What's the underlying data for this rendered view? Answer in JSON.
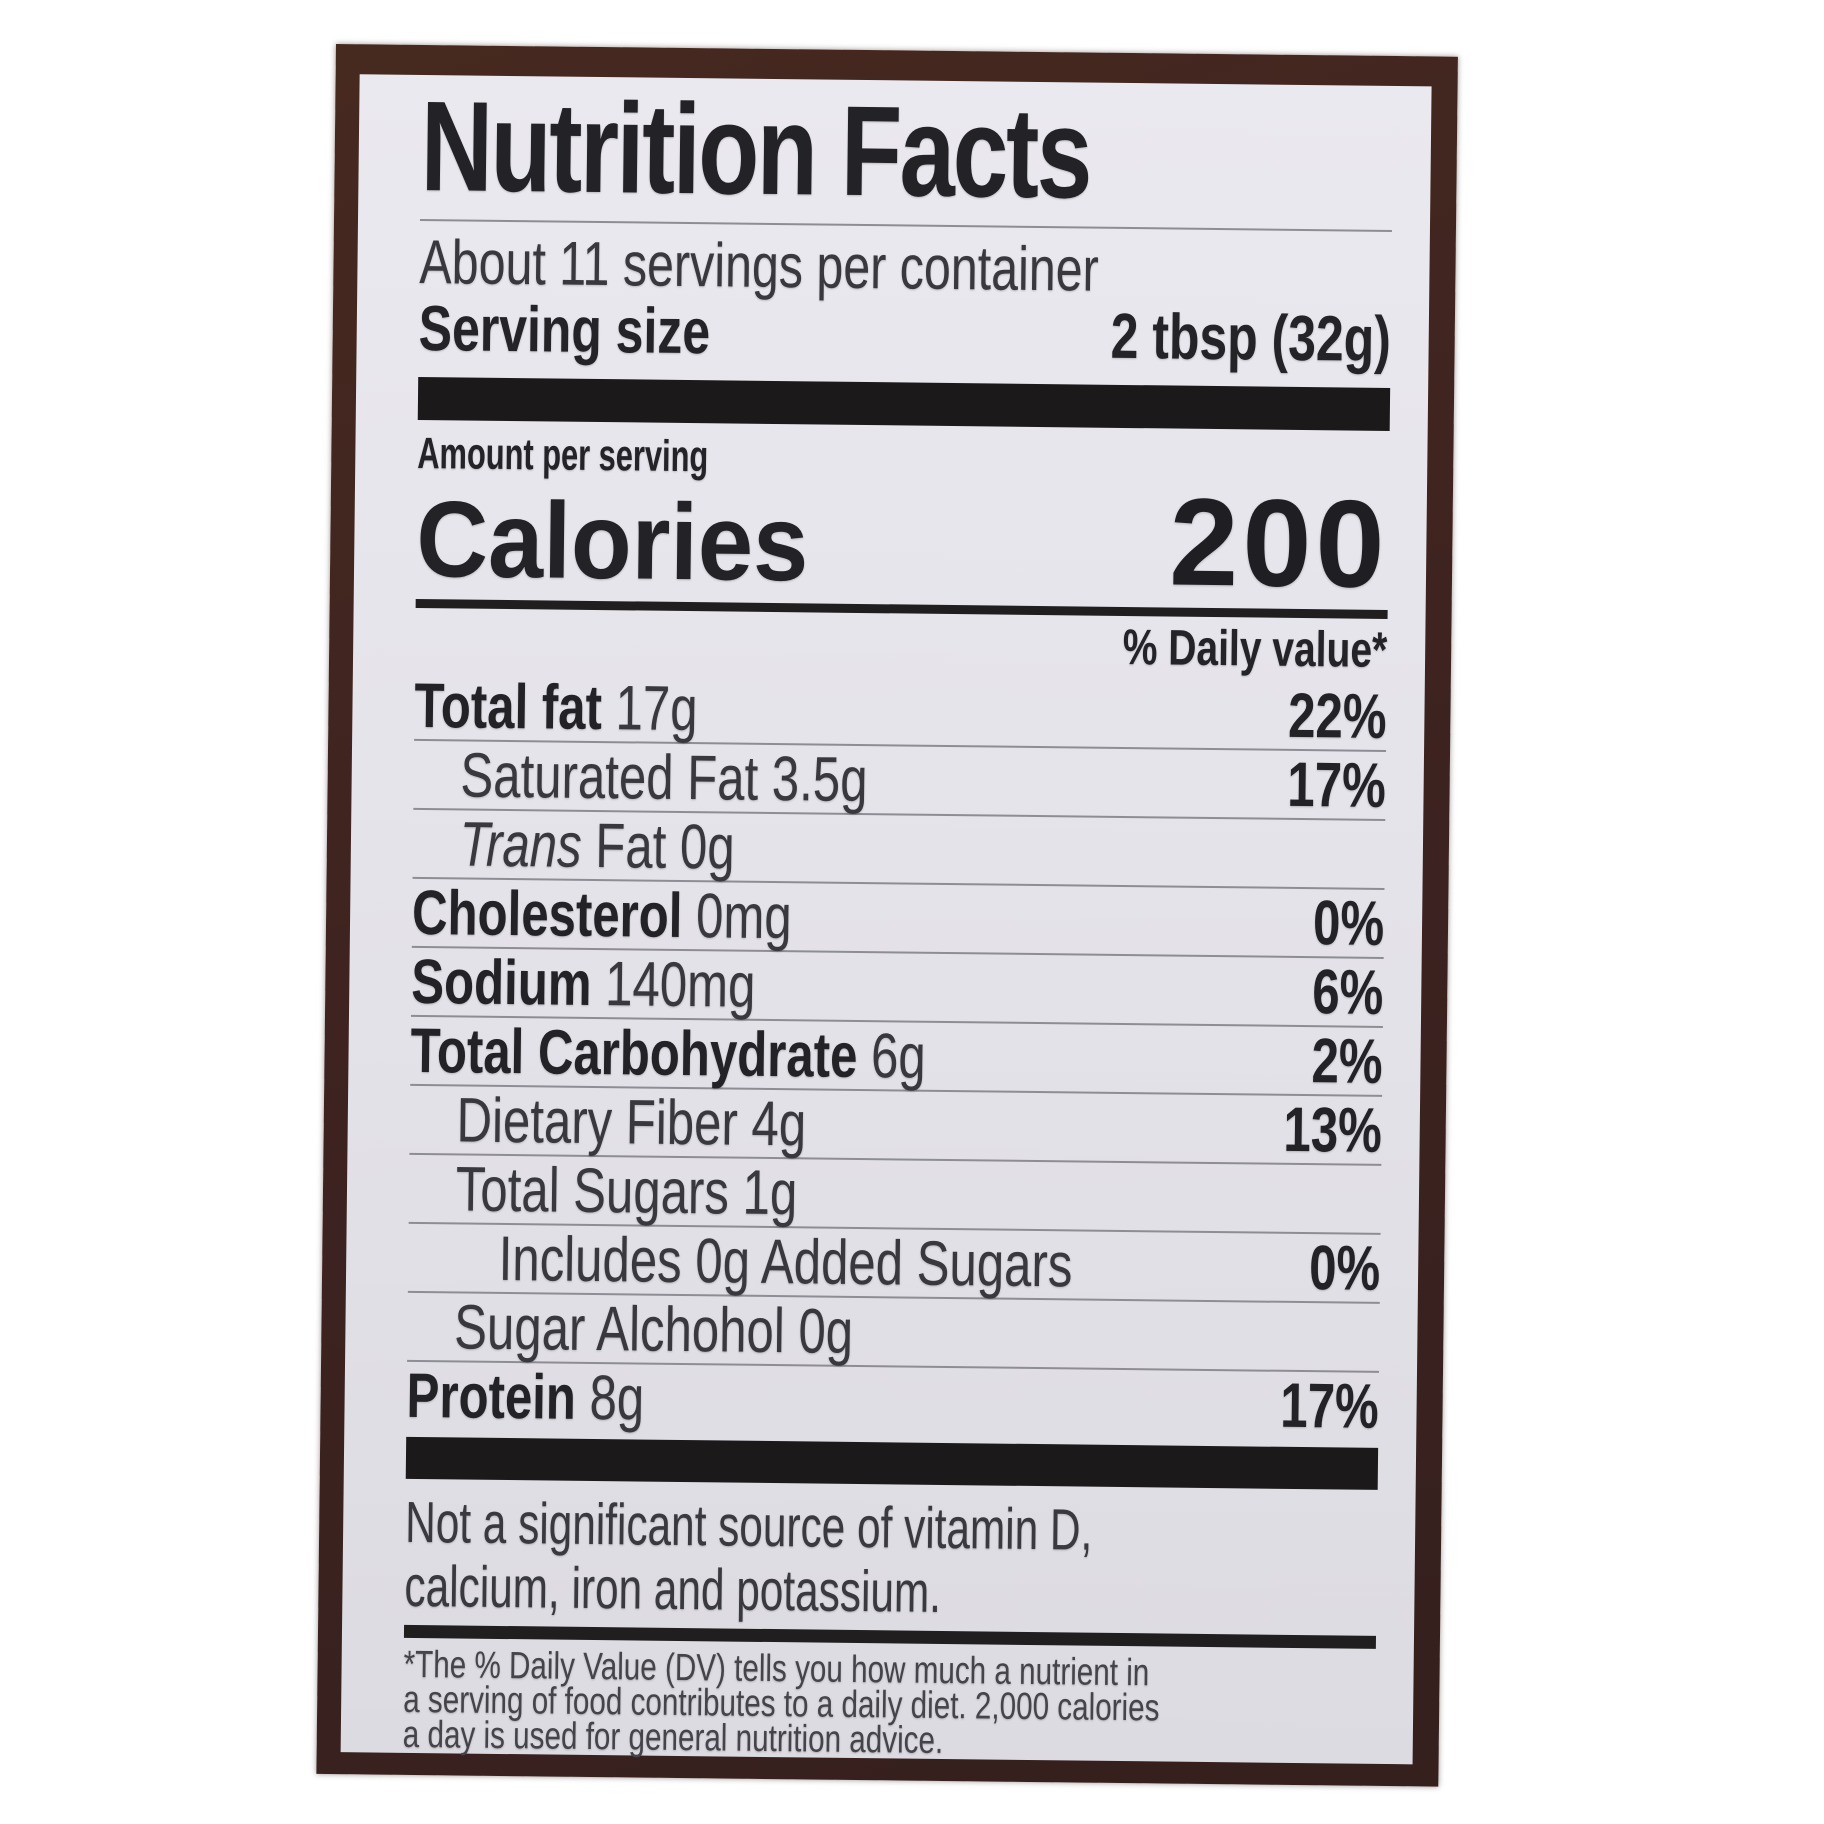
{
  "photo": {
    "frame_color": "#3f2420",
    "label_background": "#e3e2e8",
    "bar_color": "#1c191b",
    "text_color": "#2b2a2f"
  },
  "label": {
    "title": "Nutrition Facts",
    "servings_line": "About 11 servings per container",
    "serving_size_label": "Serving size",
    "serving_size_value": "2 tbsp (32g)",
    "amount_per_serving": "Amount per serving",
    "calories_label": "Calories",
    "calories_value": "200",
    "daily_value_header": "% Daily value*",
    "rows": [
      {
        "bold_name": "Total fat",
        "amount": " 17g",
        "dv": "22%"
      },
      {
        "plain_name": "Saturated Fat",
        "amount": " 3.5g",
        "dv": "17%"
      },
      {
        "italic_name": "Trans",
        "plain_name": " Fat",
        "amount": " 0g"
      },
      {
        "bold_name": "Cholesterol",
        "amount": " 0mg",
        "dv": "0%"
      },
      {
        "bold_name": "Sodium",
        "amount": " 140mg",
        "dv": "6%"
      },
      {
        "bold_name": "Total Carbohydrate",
        "amount": " 6g",
        "dv": "2%"
      },
      {
        "plain_name": "Dietary Fiber",
        "amount": " 4g",
        "dv": "13%"
      },
      {
        "plain_name": "Total Sugars",
        "amount": " 1g"
      },
      {
        "plain_name": "Includes 0g Added Sugars",
        "dv": "0%"
      },
      {
        "plain_name": "Sugar Alchohol",
        "amount": " 0g"
      },
      {
        "bold_name": "Protein",
        "amount": " 8g",
        "dv": "17%"
      }
    ],
    "not_significant_lines": [
      "Not a significant source of vitamin D,",
      "calcium, iron and potassium."
    ],
    "footnote_lines": [
      "*The % Daily Value (DV) tells you how much a nutrient in",
      "a serving of food contributes to a daily diet. 2,000 calories",
      "a day is used for general nutrition advice."
    ]
  }
}
